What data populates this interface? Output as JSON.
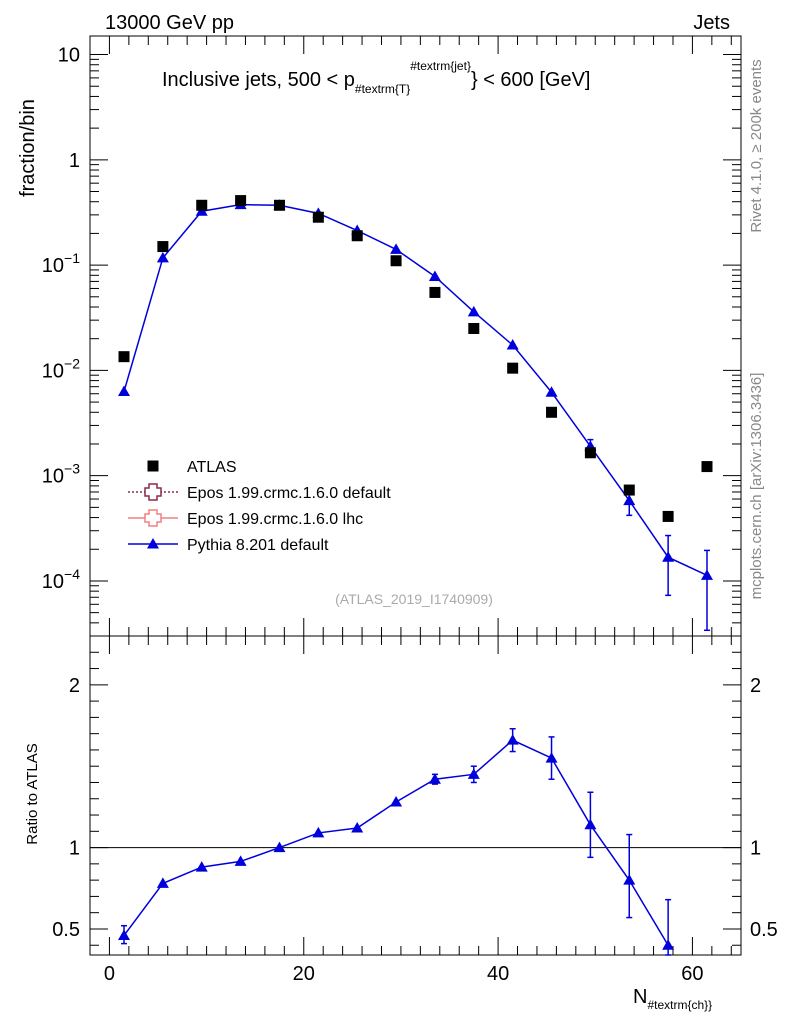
{
  "header": {
    "left": "13000 GeV pp",
    "right": "Jets"
  },
  "title": {
    "main": "Inclusive jets, 500 < p",
    "sub": "#textrm{T}",
    "sup": "#textrm{jet}",
    "tail": "} < 600 [GeV]"
  },
  "side_notes": {
    "version": "Rivet 4.1.0, ≥ 200k events",
    "source": "mcplots.cern.ch [arXiv:1306.3436]"
  },
  "analysis_id": "(ATLAS_2019_I1740909)",
  "xlabel": {
    "main": "N",
    "sub": "#textrm{ch}}"
  },
  "colors": {
    "data": "#000000",
    "pythia": "#0000dd",
    "epos_default": "#8b2a4a",
    "epos_lhc": "#f08080"
  },
  "chart_data": [
    {
      "type": "scatter",
      "panel": "main",
      "ylabel": "fraction/bin",
      "log_y": true,
      "xlim": [
        -2,
        65
      ],
      "ylim": [
        3e-05,
        15
      ],
      "y_tick_labels": [
        {
          "value": 10,
          "base": "10",
          "exp": ""
        },
        {
          "value": 1,
          "base": "1",
          "exp": ""
        },
        {
          "value": 0.1,
          "base": "10",
          "exp": "−1"
        },
        {
          "value": 0.01,
          "base": "10",
          "exp": "−2"
        },
        {
          "value": 0.001,
          "base": "10",
          "exp": "−3"
        },
        {
          "value": 0.0001,
          "base": "10",
          "exp": "−4"
        }
      ],
      "legend": {
        "placement": "lower-left",
        "entries": [
          {
            "label": "ATLAS",
            "marker": "square"
          },
          {
            "label": "Epos 1.99.crmc.1.6.0 default",
            "marker": "open-cross"
          },
          {
            "label": "Epos 1.99.crmc.1.6.0 lhc",
            "marker": "open-cross"
          },
          {
            "label": "Pythia 8.201 default",
            "marker": "triangle"
          }
        ]
      },
      "series": [
        {
          "name": "ATLAS",
          "style": "markers",
          "points": [
            {
              "x": 1.5,
              "y": 0.0135
            },
            {
              "x": 5.5,
              "y": 0.15
            },
            {
              "x": 9.5,
              "y": 0.37
            },
            {
              "x": 13.5,
              "y": 0.41
            },
            {
              "x": 17.5,
              "y": 0.37
            },
            {
              "x": 21.5,
              "y": 0.285
            },
            {
              "x": 25.5,
              "y": 0.19
            },
            {
              "x": 29.5,
              "y": 0.11
            },
            {
              "x": 33.5,
              "y": 0.055
            },
            {
              "x": 37.5,
              "y": 0.025
            },
            {
              "x": 41.5,
              "y": 0.0105
            },
            {
              "x": 45.5,
              "y": 0.004
            },
            {
              "x": 49.5,
              "y": 0.00165
            },
            {
              "x": 53.5,
              "y": 0.00073
            },
            {
              "x": 57.5,
              "y": 0.00041
            },
            {
              "x": 61.5,
              "y": 0.00122
            }
          ]
        },
        {
          "name": "Pythia 8.201 default",
          "style": "line-markers",
          "points": [
            {
              "x": 1.5,
              "y": 0.0063
            },
            {
              "x": 5.5,
              "y": 0.117
            },
            {
              "x": 9.5,
              "y": 0.325
            },
            {
              "x": 13.5,
              "y": 0.375
            },
            {
              "x": 17.5,
              "y": 0.37
            },
            {
              "x": 21.5,
              "y": 0.31
            },
            {
              "x": 25.5,
              "y": 0.213
            },
            {
              "x": 29.5,
              "y": 0.141
            },
            {
              "x": 33.5,
              "y": 0.078
            },
            {
              "x": 37.5,
              "y": 0.036
            },
            {
              "x": 41.5,
              "y": 0.0174
            },
            {
              "x": 45.5,
              "y": 0.0062
            },
            {
              "x": 49.5,
              "y": 0.0019,
              "err_up": 0.0022,
              "err_down": 0.0016
            },
            {
              "x": 53.5,
              "y": 0.00058,
              "err_up": 0.00079,
              "err_down": 0.00042
            },
            {
              "x": 57.5,
              "y": 0.000168,
              "err_up": 0.00027,
              "err_down": 7.3e-05
            },
            {
              "x": 61.5,
              "y": 0.000113,
              "err_up": 0.000195,
              "err_down": 3.4e-05
            }
          ]
        }
      ]
    },
    {
      "type": "scatter",
      "panel": "ratio",
      "ylabel": "Ratio to ATLAS",
      "xlabel": "N",
      "xlim": [
        -2,
        65
      ],
      "ylim": [
        0.34,
        2.3
      ],
      "x_ticks": [
        0,
        20,
        40,
        60
      ],
      "y_tick_labels": [
        "0.5",
        "1",
        "2"
      ],
      "y_ticks": [
        0.5,
        1,
        2
      ],
      "reference_line": 1,
      "series": [
        {
          "name": "Pythia 8.201 default",
          "style": "line-markers",
          "points": [
            {
              "x": 1.5,
              "y": 0.46,
              "err_up": 0.52,
              "err_down": 0.41
            },
            {
              "x": 5.5,
              "y": 0.78
            },
            {
              "x": 9.5,
              "y": 0.88
            },
            {
              "x": 13.5,
              "y": 0.915
            },
            {
              "x": 17.5,
              "y": 1.0
            },
            {
              "x": 21.5,
              "y": 1.09
            },
            {
              "x": 25.5,
              "y": 1.12
            },
            {
              "x": 29.5,
              "y": 1.28
            },
            {
              "x": 33.5,
              "y": 1.42,
              "err_up": 1.45,
              "err_down": 1.39
            },
            {
              "x": 37.5,
              "y": 1.45,
              "err_up": 1.5,
              "err_down": 1.4
            },
            {
              "x": 41.5,
              "y": 1.66,
              "err_up": 1.73,
              "err_down": 1.59
            },
            {
              "x": 45.5,
              "y": 1.55,
              "err_up": 1.68,
              "err_down": 1.42
            },
            {
              "x": 49.5,
              "y": 1.14,
              "err_up": 1.34,
              "err_down": 0.94
            },
            {
              "x": 53.5,
              "y": 0.8,
              "err_up": 1.08,
              "err_down": 0.57
            },
            {
              "x": 57.5,
              "y": 0.4,
              "err_up": 0.68
            }
          ]
        }
      ]
    }
  ]
}
